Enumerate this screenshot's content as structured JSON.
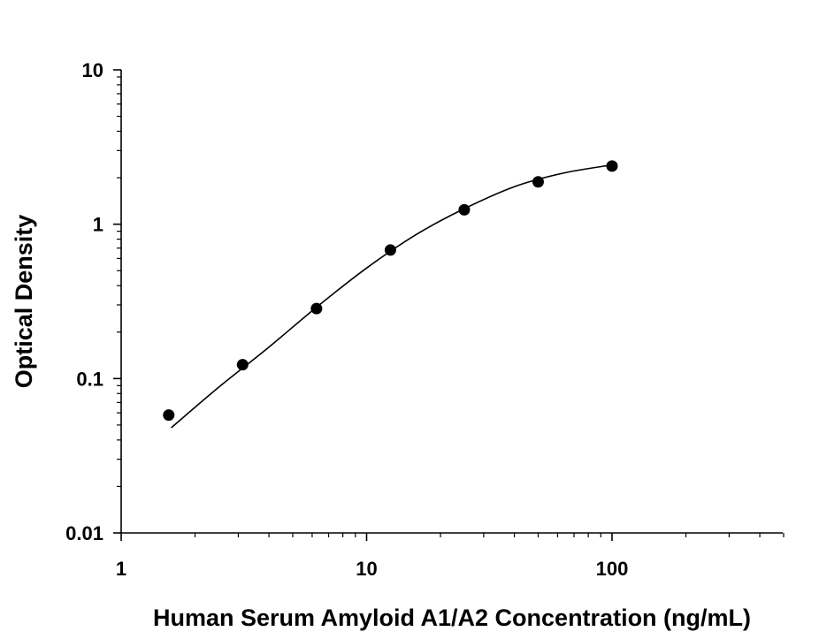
{
  "chart_data": {
    "type": "scatter",
    "title": "",
    "xlabel": "Human Serum Amyloid A1/A2 Concentration (ng/mL)",
    "ylabel": "Optical Density",
    "x_scale": "log",
    "y_scale": "log",
    "xlim": [
      1,
      500
    ],
    "ylim": [
      0.01,
      10
    ],
    "x_ticks": [
      "1",
      "10",
      "100"
    ],
    "y_ticks": [
      "0.01",
      "0.1",
      "1",
      "10"
    ],
    "grid": false,
    "legend": "none",
    "series": [
      {
        "x": [
          1.5625,
          3.125,
          6.25,
          12.5,
          25,
          50,
          100
        ],
        "y": [
          0.058,
          0.123,
          0.284,
          0.68,
          1.24,
          1.88,
          2.38
        ]
      }
    ],
    "fit_curve": {
      "x": [
        1.6,
        2.5,
        4,
        6.25,
        10,
        16,
        25,
        40,
        63,
        100
      ],
      "y": [
        0.048,
        0.088,
        0.16,
        0.29,
        0.52,
        0.86,
        1.26,
        1.75,
        2.14,
        2.42
      ]
    },
    "colors": {
      "marker": "#000000",
      "line": "#000000",
      "axis": "#000000"
    }
  }
}
